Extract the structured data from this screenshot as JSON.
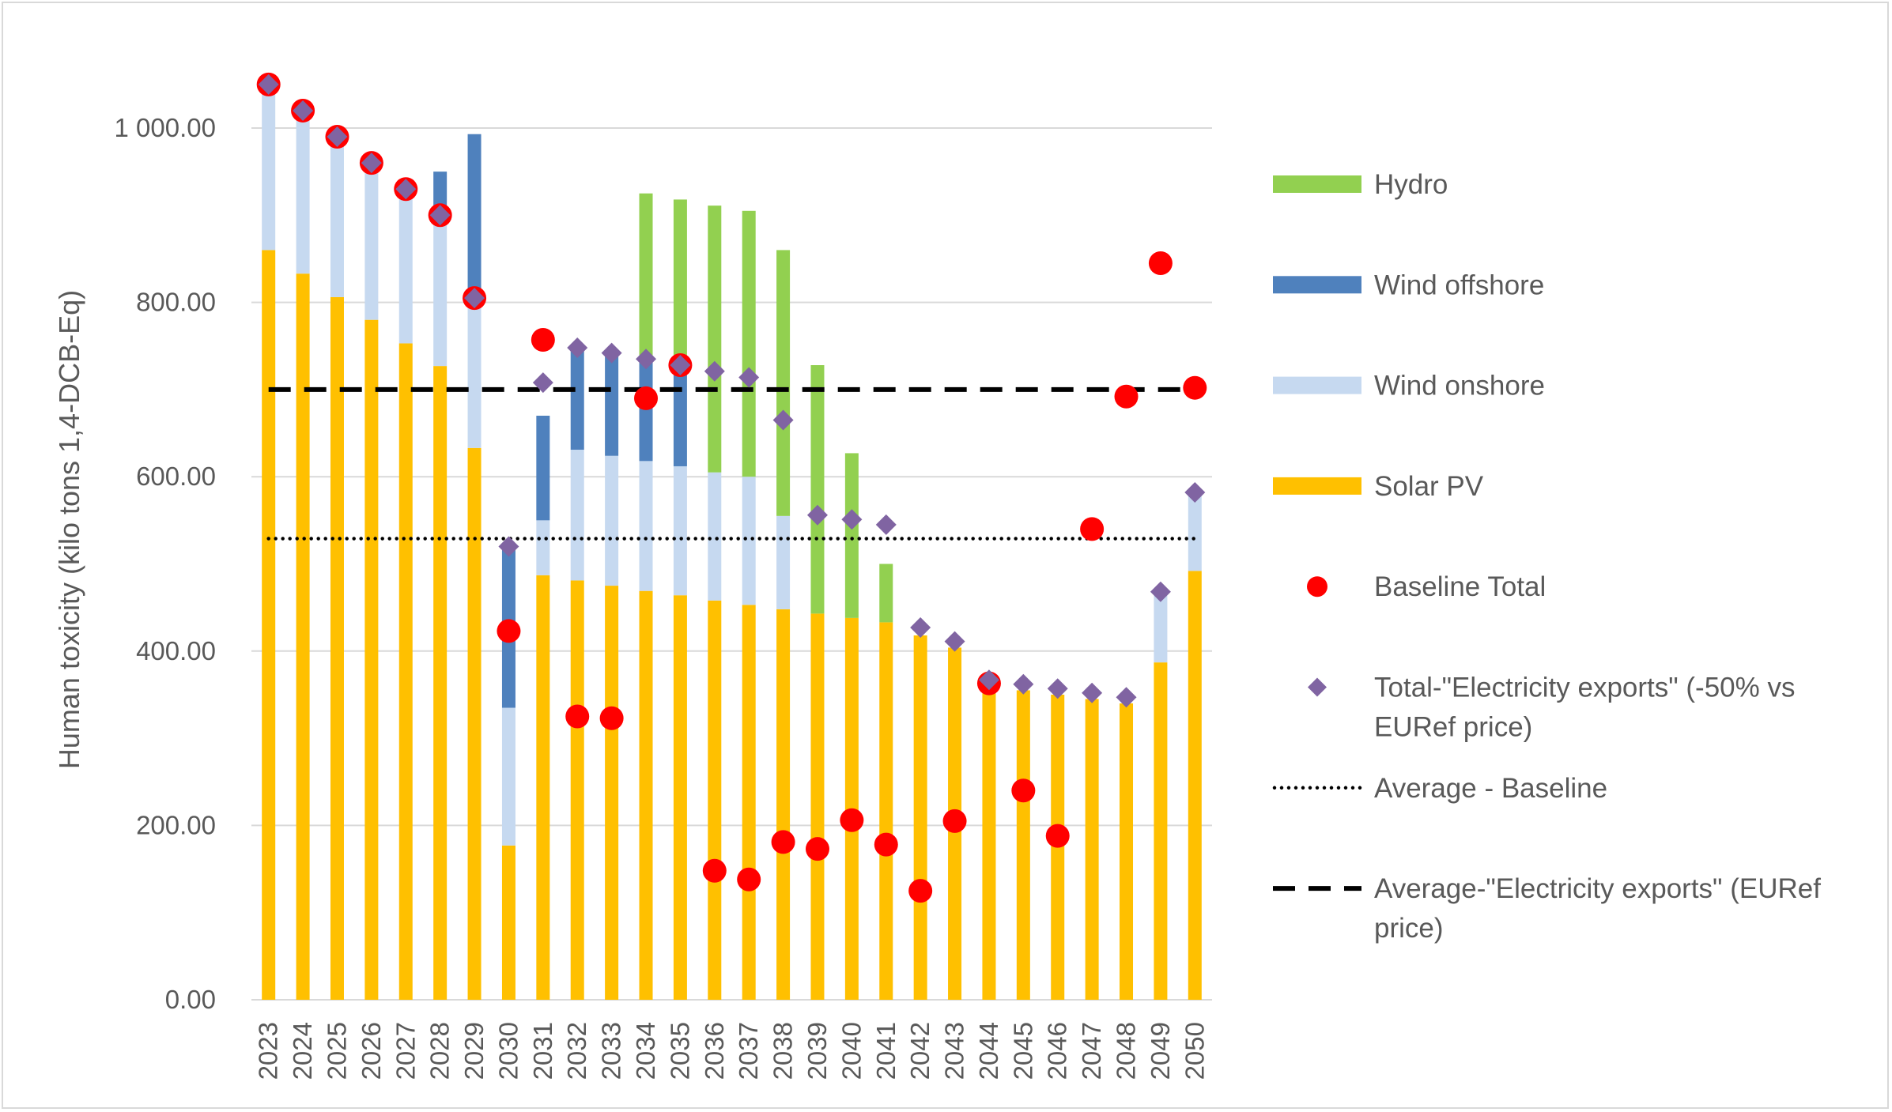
{
  "chart_data": {
    "type": "bar",
    "stacked": true,
    "ylabel": "Human toxicity (kilo tons 1,4-DCB-Eq)",
    "xlabel": "",
    "ylim": [
      0,
      1000
    ],
    "yticks": [
      0,
      200,
      400,
      600,
      800,
      1000
    ],
    "ytick_labels": [
      "0.00",
      "200.00",
      "400.00",
      "600.00",
      "800.00",
      "1 000.00"
    ],
    "grid": true,
    "legend_position": "right",
    "categories": [
      "2023",
      "2024",
      "2025",
      "2026",
      "2027",
      "2028",
      "2029",
      "2030",
      "2031",
      "2032",
      "2033",
      "2034",
      "2035",
      "2036",
      "2037",
      "2038",
      "2039",
      "2040",
      "2041",
      "2042",
      "2043",
      "2044",
      "2045",
      "2046",
      "2047",
      "2048",
      "2049",
      "2050"
    ],
    "series": [
      {
        "name": "Solar PV",
        "kind": "bar",
        "color": "#ffc000",
        "values": [
          860,
          833,
          806,
          780,
          753,
          727,
          633,
          177,
          487,
          481,
          475,
          469,
          464,
          458,
          453,
          448,
          443,
          438,
          433,
          418,
          404,
          360,
          355,
          350,
          345,
          340,
          387,
          492
        ]
      },
      {
        "name": "Wind onshore",
        "kind": "bar",
        "color": "#c6d9f0",
        "values": [
          190,
          187,
          184,
          180,
          177,
          173,
          170,
          158,
          63,
          150,
          149,
          149,
          148,
          147,
          147,
          107,
          0,
          0,
          0,
          0,
          0,
          0,
          0,
          0,
          0,
          0,
          81,
          88
        ]
      },
      {
        "name": "Wind offshore",
        "kind": "bar",
        "color": "#4f81bd",
        "values": [
          0,
          0,
          0,
          0,
          0,
          50,
          190,
          185,
          120,
          119,
          119,
          118,
          117,
          0,
          0,
          0,
          0,
          0,
          0,
          0,
          0,
          0,
          0,
          0,
          0,
          0,
          0,
          0
        ]
      },
      {
        "name": "Hydro",
        "kind": "bar",
        "color": "#92d050",
        "values": [
          0,
          0,
          0,
          0,
          0,
          0,
          0,
          0,
          0,
          0,
          0,
          189,
          189,
          306,
          305,
          305,
          285,
          189,
          67,
          0,
          0,
          0,
          0,
          0,
          0,
          0,
          0,
          0
        ]
      },
      {
        "name": "Baseline Total",
        "kind": "scatter",
        "marker": "circle",
        "color": "#ff0000",
        "values": [
          1050,
          1020,
          990,
          960,
          930,
          900,
          805,
          423,
          757,
          325,
          323,
          690,
          728,
          148,
          138,
          181,
          173,
          206,
          178,
          125,
          205,
          363,
          240,
          188,
          540,
          692,
          845,
          702
        ]
      },
      {
        "name": "Total-\"Electricity exports\" (-50% vs EURef price)",
        "kind": "scatter",
        "marker": "diamond",
        "color": "#8064a2",
        "values": [
          1050,
          1020,
          990,
          960,
          930,
          900,
          805,
          520,
          708,
          748,
          742,
          735,
          728,
          721,
          714,
          665,
          556,
          551,
          545,
          427,
          411,
          367,
          362,
          357,
          352,
          347,
          468,
          582
        ]
      },
      {
        "name": "Average - Baseline",
        "kind": "hline",
        "style": "dotted",
        "color": "#000000",
        "value": 529
      },
      {
        "name": "Average-\"Electricity exports\" (EURef price)",
        "kind": "hline",
        "style": "dashed",
        "color": "#000000",
        "value": 700
      }
    ],
    "legend": [
      {
        "label": "Hydro",
        "swatch": "bar",
        "color": "#92d050"
      },
      {
        "label": "Wind offshore",
        "swatch": "bar",
        "color": "#4f81bd"
      },
      {
        "label": "Wind onshore",
        "swatch": "bar",
        "color": "#c6d9f0"
      },
      {
        "label": "Solar PV",
        "swatch": "bar",
        "color": "#ffc000"
      },
      {
        "label": "Baseline Total",
        "swatch": "circle",
        "color": "#ff0000"
      },
      {
        "label": "Total-\"Electricity exports\" (-50% vs EURef price)",
        "lines": [
          "Total-\"Electricity exports\" (-50% vs",
          "EURef price)"
        ],
        "swatch": "diamond",
        "color": "#8064a2"
      },
      {
        "label": "Average - Baseline",
        "swatch": "dotted",
        "color": "#000000"
      },
      {
        "label": "Average-\"Electricity exports\" (EURef price)",
        "lines": [
          "Average-\"Electricity exports\" (EURef",
          "price)"
        ],
        "swatch": "dashed",
        "color": "#000000"
      }
    ],
    "colors": {
      "gridline": "#d9d9d9",
      "text": "#595959",
      "frame": "#d9d9d9"
    }
  }
}
